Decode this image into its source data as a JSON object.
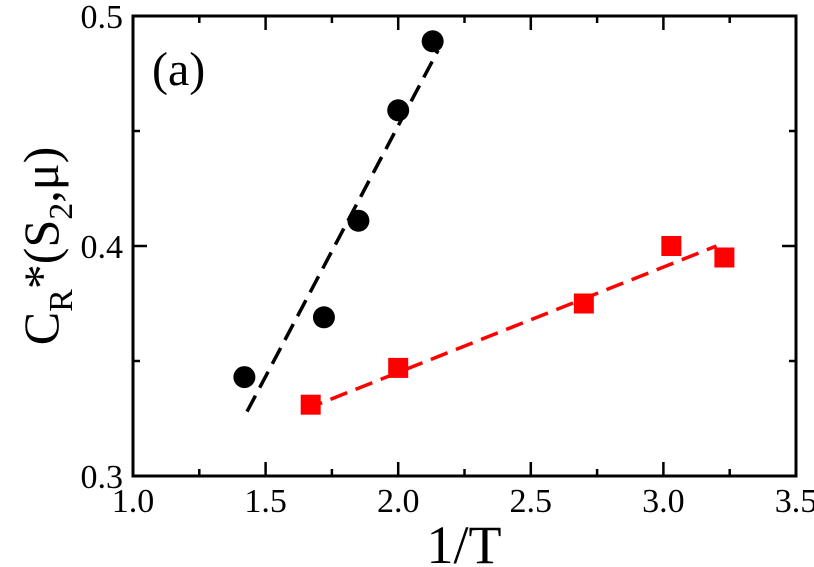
{
  "chart_data": {
    "type": "scatter",
    "panel_label": "(a)",
    "xlabel": "1/T",
    "ylabel": {
      "main": "C",
      "sub_R": "R",
      "star": "*(S",
      "sub_2": "2",
      "tail": ",μ)"
    },
    "xlim": [
      1.0,
      3.5
    ],
    "ylim": [
      0.3,
      0.5
    ],
    "xticks": [
      "1.0",
      "1.5",
      "2.0",
      "2.5",
      "3.0",
      "3.5"
    ],
    "yticks": [
      "0.3",
      "0.4",
      "0.5"
    ],
    "series": [
      {
        "name": "black circles",
        "marker": "circle",
        "color": "#000000",
        "x": [
          1.42,
          1.72,
          1.85,
          2.0,
          2.13
        ],
        "y": [
          0.343,
          0.369,
          0.411,
          0.459,
          0.489
        ],
        "fit": {
          "x": [
            1.43,
            2.15
          ],
          "y": [
            0.328,
            0.485
          ]
        }
      },
      {
        "name": "red squares",
        "marker": "square",
        "color": "#ff0000",
        "x": [
          1.67,
          2.0,
          2.7,
          3.03,
          3.23
        ],
        "y": [
          0.331,
          0.347,
          0.375,
          0.4,
          0.395
        ],
        "fit": {
          "x": [
            1.65,
            3.2
          ],
          "y": [
            0.329,
            0.4
          ]
        }
      }
    ]
  }
}
